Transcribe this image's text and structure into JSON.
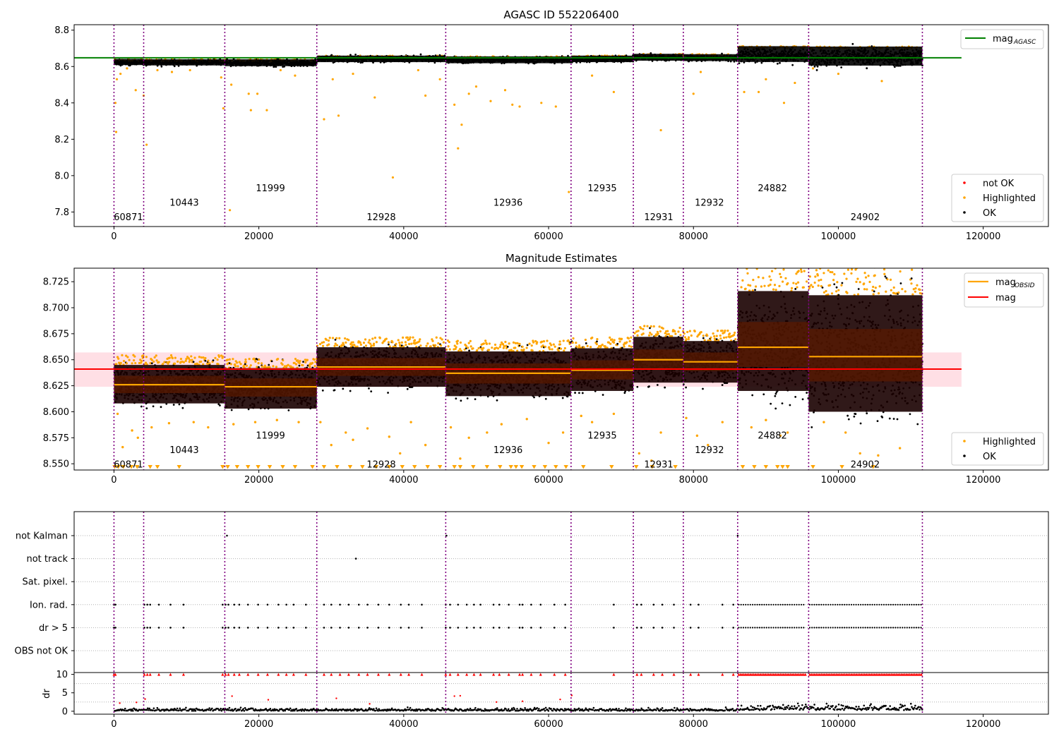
{
  "figure": {
    "title_top": "AGASC ID 552206400",
    "title_mid": "Magnitude Estimates"
  },
  "colors": {
    "ok": "#000000",
    "highlighted": "#ffa500",
    "not_ok": "#ff0000",
    "mag_agasc": "#008000",
    "mag": "#ff0000",
    "mag_obsid": "#ffa500",
    "obs_line": "#800080",
    "band": "#ffc0cb"
  },
  "chart_data": [
    {
      "type": "scatter",
      "title": "AGASC ID 552206400",
      "xlim": [
        -5500,
        129000
      ],
      "ylim": [
        7.72,
        8.83
      ],
      "xticks": [
        0,
        20000,
        40000,
        60000,
        80000,
        100000,
        120000
      ],
      "yticks": [
        7.8,
        8.0,
        8.2,
        8.4,
        8.6,
        8.8
      ],
      "legend_upper": {
        "position": "top-right",
        "entries": [
          {
            "label": "mag",
            "sub": "AGASC"
          }
        ]
      },
      "legend_lower": {
        "position": "bottom-right",
        "entries": [
          {
            "label": "not OK"
          },
          {
            "label": "Highlighted"
          },
          {
            "label": "OK"
          }
        ]
      },
      "mag_agasc": 8.648,
      "mag_agasc_x": [
        -5500,
        117000
      ],
      "obs_boundaries": [
        0,
        4100,
        15300,
        28000,
        45800,
        63100,
        71700,
        78600,
        86100,
        95900,
        111600
      ],
      "obsids": [
        {
          "id": "60871",
          "x": 2000,
          "y": 7.77,
          "start": 0,
          "end": 4100,
          "mean": 8.622,
          "lo": 8.608,
          "hi": 8.642
        },
        {
          "id": "10443",
          "x": 9700,
          "y": 7.85,
          "start": 4100,
          "end": 15300,
          "mean": 8.622,
          "lo": 8.606,
          "hi": 8.64
        },
        {
          "id": "11999",
          "x": 21600,
          "y": 7.93,
          "start": 15300,
          "end": 28000,
          "mean": 8.62,
          "lo": 8.602,
          "hi": 8.64
        },
        {
          "id": "12928",
          "x": 36900,
          "y": 7.77,
          "start": 28000,
          "end": 45800,
          "mean": 8.642,
          "lo": 8.624,
          "hi": 8.66
        },
        {
          "id": "12936",
          "x": 54400,
          "y": 7.85,
          "start": 45800,
          "end": 63100,
          "mean": 8.637,
          "lo": 8.618,
          "hi": 8.656
        },
        {
          "id": "12935",
          "x": 67400,
          "y": 7.93,
          "start": 63100,
          "end": 71700,
          "mean": 8.64,
          "lo": 8.624,
          "hi": 8.66
        },
        {
          "id": "12931",
          "x": 75200,
          "y": 7.77,
          "start": 71700,
          "end": 78600,
          "mean": 8.65,
          "lo": 8.632,
          "hi": 8.67
        },
        {
          "id": "12932",
          "x": 82200,
          "y": 7.85,
          "start": 78600,
          "end": 86100,
          "mean": 8.648,
          "lo": 8.63,
          "hi": 8.668
        },
        {
          "id": "24882",
          "x": 90900,
          "y": 7.93,
          "start": 86100,
          "end": 95900,
          "mean": 8.662,
          "lo": 8.625,
          "hi": 8.712
        },
        {
          "id": "24902",
          "x": 103700,
          "y": 7.77,
          "start": 95900,
          "end": 111600,
          "mean": 8.652,
          "lo": 8.605,
          "hi": 8.71
        }
      ],
      "outliers": [
        [
          200,
          8.4
        ],
        [
          300,
          8.24
        ],
        [
          400,
          8.53
        ],
        [
          900,
          8.56
        ],
        [
          1800,
          8.59
        ],
        [
          3000,
          8.47
        ],
        [
          4100,
          8.44
        ],
        [
          4500,
          8.17
        ],
        [
          6000,
          8.58
        ],
        [
          8000,
          8.57
        ],
        [
          10500,
          8.58
        ],
        [
          14800,
          8.54
        ],
        [
          15100,
          8.37
        ],
        [
          16200,
          8.5
        ],
        [
          18600,
          8.45
        ],
        [
          18900,
          8.36
        ],
        [
          19800,
          8.45
        ],
        [
          21100,
          8.36
        ],
        [
          16000,
          7.81
        ],
        [
          23000,
          8.58
        ],
        [
          25000,
          8.55
        ],
        [
          29000,
          8.31
        ],
        [
          30200,
          8.53
        ],
        [
          31000,
          8.33
        ],
        [
          33000,
          8.56
        ],
        [
          36000,
          8.43
        ],
        [
          38500,
          7.99
        ],
        [
          42000,
          8.58
        ],
        [
          43000,
          8.44
        ],
        [
          45000,
          8.53
        ],
        [
          47000,
          8.39
        ],
        [
          47500,
          8.15
        ],
        [
          48000,
          8.28
        ],
        [
          49000,
          8.45
        ],
        [
          50000,
          8.49
        ],
        [
          52000,
          8.41
        ],
        [
          54000,
          8.47
        ],
        [
          55000,
          8.39
        ],
        [
          56000,
          8.38
        ],
        [
          59000,
          8.4
        ],
        [
          61000,
          8.38
        ],
        [
          62800,
          7.91
        ],
        [
          66000,
          8.55
        ],
        [
          69000,
          8.46
        ],
        [
          75500,
          8.25
        ],
        [
          80000,
          8.45
        ],
        [
          81000,
          8.57
        ],
        [
          87000,
          8.46
        ],
        [
          89000,
          8.46
        ],
        [
          90000,
          8.53
        ],
        [
          92500,
          8.4
        ],
        [
          94000,
          8.51
        ],
        [
          96500,
          8.59
        ],
        [
          100000,
          8.56
        ],
        [
          106000,
          8.52
        ]
      ]
    },
    {
      "type": "scatter",
      "title": "Magnitude Estimates",
      "xlim": [
        -5500,
        129000
      ],
      "ylim": [
        8.544,
        8.738
      ],
      "xticks": [
        0,
        20000,
        40000,
        60000,
        80000,
        100000,
        120000
      ],
      "yticks": [
        8.55,
        8.575,
        8.6,
        8.625,
        8.65,
        8.675,
        8.7,
        8.725
      ],
      "legend_upper": {
        "position": "top-right",
        "entries": [
          {
            "label": "mag",
            "sub": "OBSID"
          },
          {
            "label": "mag"
          }
        ]
      },
      "legend_lower": {
        "position": "bottom-right",
        "entries": [
          {
            "label": "Highlighted"
          },
          {
            "label": "OK"
          }
        ]
      },
      "mag": 8.641,
      "mag_band": [
        8.624,
        8.657
      ],
      "mag_x": [
        -5500,
        117000
      ],
      "obsids": [
        {
          "id": "60871",
          "x": 2000,
          "y": 8.549,
          "start": 0,
          "end": 4100,
          "mean": 8.626,
          "lo": 8.608,
          "hi": 8.645
        },
        {
          "id": "10443",
          "x": 9700,
          "y": 8.563,
          "start": 4100,
          "end": 15300,
          "mean": 8.626,
          "lo": 8.608,
          "hi": 8.645
        },
        {
          "id": "11999",
          "x": 21600,
          "y": 8.577,
          "start": 15300,
          "end": 28000,
          "mean": 8.624,
          "lo": 8.603,
          "hi": 8.642
        },
        {
          "id": "12928",
          "x": 36900,
          "y": 8.549,
          "start": 28000,
          "end": 45800,
          "mean": 8.643,
          "lo": 8.624,
          "hi": 8.662
        },
        {
          "id": "12936",
          "x": 54400,
          "y": 8.563,
          "start": 45800,
          "end": 63100,
          "mean": 8.637,
          "lo": 8.615,
          "hi": 8.658
        },
        {
          "id": "12935",
          "x": 67400,
          "y": 8.577,
          "start": 63100,
          "end": 71700,
          "mean": 8.64,
          "lo": 8.62,
          "hi": 8.661
        },
        {
          "id": "12931",
          "x": 75200,
          "y": 8.549,
          "start": 71700,
          "end": 78600,
          "mean": 8.65,
          "lo": 8.628,
          "hi": 8.672
        },
        {
          "id": "12932",
          "x": 82200,
          "y": 8.563,
          "start": 78600,
          "end": 86100,
          "mean": 8.648,
          "lo": 8.628,
          "hi": 8.668
        },
        {
          "id": "24882",
          "x": 90900,
          "y": 8.577,
          "start": 86100,
          "end": 95900,
          "mean": 8.662,
          "lo": 8.62,
          "hi": 8.716
        },
        {
          "id": "24902",
          "x": 103700,
          "y": 8.549,
          "start": 95900,
          "end": 111600,
          "mean": 8.653,
          "lo": 8.6,
          "hi": 8.712
        }
      ],
      "outliers": [
        [
          500,
          8.598
        ],
        [
          1200,
          8.566
        ],
        [
          2500,
          8.582
        ],
        [
          3300,
          8.575
        ],
        [
          5200,
          8.585
        ],
        [
          7600,
          8.589
        ],
        [
          11000,
          8.59
        ],
        [
          13000,
          8.585
        ],
        [
          16500,
          8.588
        ],
        [
          19500,
          8.59
        ],
        [
          22500,
          8.592
        ],
        [
          25500,
          8.59
        ],
        [
          28500,
          8.59
        ],
        [
          30000,
          8.568
        ],
        [
          32000,
          8.58
        ],
        [
          33000,
          8.573
        ],
        [
          35000,
          8.584
        ],
        [
          38000,
          8.576
        ],
        [
          39500,
          8.56
        ],
        [
          41000,
          8.59
        ],
        [
          43000,
          8.568
        ],
        [
          46500,
          8.585
        ],
        [
          47800,
          8.555
        ],
        [
          49000,
          8.575
        ],
        [
          51500,
          8.58
        ],
        [
          53500,
          8.588
        ],
        [
          57000,
          8.593
        ],
        [
          60000,
          8.57
        ],
        [
          62000,
          8.58
        ],
        [
          64500,
          8.596
        ],
        [
          66000,
          8.59
        ],
        [
          69000,
          8.598
        ],
        [
          72500,
          8.56
        ],
        [
          74200,
          8.553
        ],
        [
          75500,
          8.58
        ],
        [
          79000,
          8.594
        ],
        [
          80500,
          8.577
        ],
        [
          82000,
          8.568
        ],
        [
          84000,
          8.59
        ],
        [
          88000,
          8.585
        ],
        [
          90000,
          8.592
        ],
        [
          92000,
          8.577
        ],
        [
          93000,
          8.58
        ],
        [
          98000,
          8.59
        ],
        [
          101000,
          8.58
        ],
        [
          103000,
          8.56
        ],
        [
          105500,
          8.558
        ],
        [
          108500,
          8.565
        ]
      ],
      "below_markers_x": [
        100,
        600,
        1300,
        2400,
        3200,
        5000,
        6000,
        9000,
        15000,
        15700,
        17000,
        18500,
        19900,
        21500,
        23300,
        25000,
        27400,
        29000,
        30800,
        32600,
        34300,
        36200,
        38000,
        39800,
        41500,
        43300,
        45000,
        47000,
        47800,
        49600,
        51500,
        53300,
        54800,
        55500,
        56300,
        58000,
        59500,
        61000,
        62400,
        64800,
        68700,
        72100,
        74300,
        77500,
        86800,
        88400,
        90000,
        91600,
        92300,
        93000,
        96500,
        100500,
        104800
      ]
    },
    {
      "type": "scatter",
      "title": "",
      "xlim": [
        -5500,
        129000
      ],
      "xticks": [
        0,
        20000,
        40000,
        60000,
        80000,
        100000,
        120000
      ],
      "categories": [
        "not Kalman",
        "not track",
        "Sat. pixel.",
        "Ion. rad.",
        "dr > 5",
        "OBS not OK"
      ],
      "flags": {
        "not Kalman": [
          15600,
          45900,
          86100
        ],
        "not track": [
          33400
        ],
        "Sat. pixel.": [],
        "Ion. rad.": [
          0,
          200,
          4200,
          4600,
          5000,
          6200,
          7800,
          9600,
          15000,
          15400,
          15800,
          16600,
          17300,
          18500,
          19900,
          21200,
          22700,
          23800,
          24800,
          26500,
          29000,
          30000,
          31200,
          32400,
          33800,
          35000,
          36500,
          38000,
          39600,
          40700,
          42500,
          45800,
          46400,
          47500,
          48700,
          49700,
          50600,
          52400,
          53200,
          54500,
          56000,
          56400,
          57600,
          58900,
          60800,
          62300,
          69000,
          72200,
          72800,
          74500,
          75700,
          77300,
          79600,
          80700,
          84000,
          85500
        ],
        "dr > 5": [
          0,
          200,
          4200,
          4600,
          5000,
          6200,
          7800,
          9600,
          15000,
          15400,
          15800,
          16600,
          17300,
          18500,
          19900,
          21200,
          22700,
          23800,
          24800,
          26500,
          29000,
          30000,
          31200,
          32400,
          33800,
          35000,
          36500,
          38000,
          39600,
          40700,
          42500,
          45800,
          46400,
          47500,
          48700,
          49700,
          50600,
          52400,
          53200,
          54500,
          56000,
          56400,
          57600,
          58900,
          60800,
          62300,
          69000,
          72200,
          72800,
          74500,
          75700,
          77300,
          79600,
          80700,
          84000,
          85500
        ],
        "OBS not OK": []
      },
      "dense_ranges": [
        [
          86100,
          95600
        ],
        [
          95900,
          111600
        ]
      ]
    },
    {
      "type": "scatter",
      "title": "",
      "ylabel": "dr",
      "xlim": [
        -5500,
        129000
      ],
      "ylim": [
        -0.8,
        10.5
      ],
      "yticks": [
        0,
        5,
        10
      ],
      "xticks": [
        0,
        20000,
        40000,
        60000,
        80000,
        100000,
        120000
      ],
      "xticklabels": [
        "0",
        "20000",
        "40000",
        "60000",
        "80000",
        "100000",
        "120000"
      ],
      "clipped_at": 10,
      "extra_points": [
        [
          800,
          2.2
        ],
        [
          3100,
          2.4
        ],
        [
          4300,
          3.3
        ],
        [
          16300,
          4.1
        ],
        [
          21300,
          3.1
        ],
        [
          30700,
          3.5
        ],
        [
          35300,
          2.0
        ],
        [
          47000,
          4.1
        ],
        [
          47800,
          4.2
        ],
        [
          52800,
          2.5
        ],
        [
          56400,
          2.7
        ],
        [
          61600,
          3.2
        ],
        [
          63200,
          4.3
        ]
      ]
    }
  ]
}
